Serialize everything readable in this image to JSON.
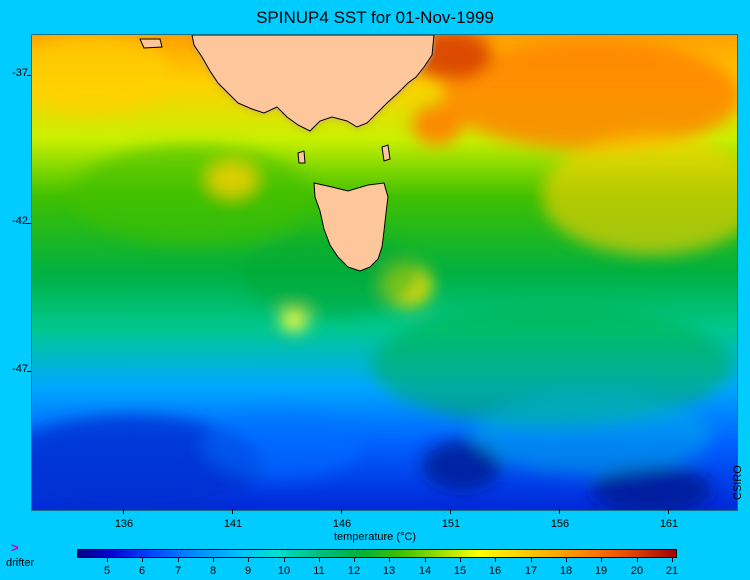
{
  "title": "SPINUP4 SST for 01-Nov-1999",
  "y_axis": {
    "ticks": [
      "-37",
      "-42",
      "-47"
    ]
  },
  "x_axis": {
    "ticks": [
      "136",
      "141",
      "146",
      "151",
      "156",
      "161"
    ]
  },
  "credit": "CSIRO",
  "colorbar": {
    "title": "temperature (°C)",
    "ticks": [
      "5",
      "6",
      "7",
      "8",
      "9",
      "10",
      "11",
      "12",
      "13",
      "14",
      "15",
      "16",
      "17",
      "18",
      "19",
      "20",
      "21"
    ]
  },
  "legend": {
    "symbol": ">",
    "label": "drifter",
    "symbol_color": "#c000c0"
  },
  "colors": {
    "background": "#00ccff",
    "land": "#fdc79b",
    "coast": "#000000"
  }
}
